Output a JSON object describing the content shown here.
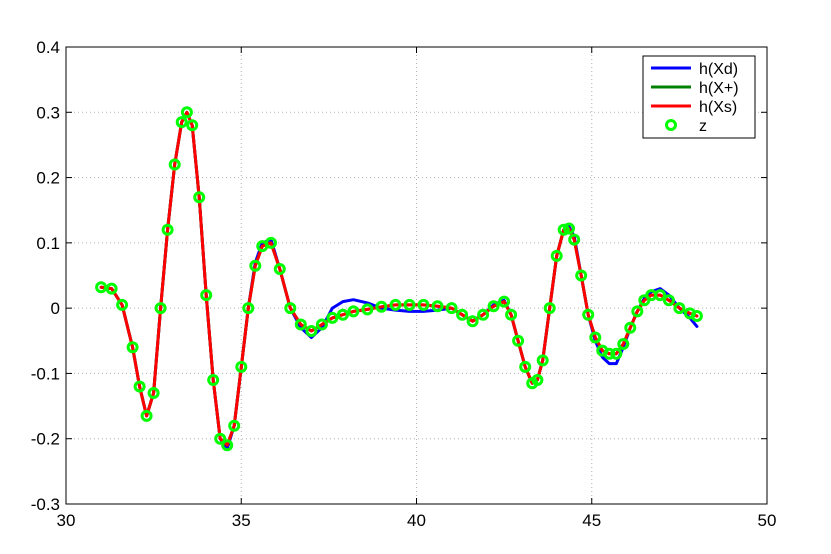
{
  "chart_data": {
    "type": "line",
    "title": "",
    "xlabel": "",
    "ylabel": "",
    "xlim": [
      30,
      50
    ],
    "ylim": [
      -0.3,
      0.4
    ],
    "x_ticks": [
      30,
      35,
      40,
      45,
      50
    ],
    "y_ticks": [
      -0.3,
      -0.2,
      -0.1,
      0,
      0.1,
      0.2,
      0.3,
      0.4
    ],
    "x_tick_labels": [
      "30",
      "35",
      "40",
      "45",
      "50"
    ],
    "y_tick_labels": [
      "-0.3",
      "-0.2",
      "-0.1",
      "0",
      "0.1",
      "0.2",
      "0.3",
      "0.4"
    ],
    "grid": true,
    "legend_position": "top-right",
    "series": [
      {
        "name": "h(Xd)",
        "style": "line",
        "color": "#0000ff",
        "x": [
          31.0,
          31.3,
          31.6,
          31.9,
          32.1,
          32.3,
          32.5,
          32.7,
          32.9,
          33.1,
          33.3,
          33.45,
          33.6,
          33.8,
          34.0,
          34.2,
          34.4,
          34.6,
          34.8,
          35.0,
          35.2,
          35.4,
          35.6,
          35.85,
          36.1,
          36.4,
          36.7,
          37.0,
          37.3,
          37.6,
          37.9,
          38.2,
          38.6,
          39.0,
          39.4,
          39.8,
          40.2,
          40.6,
          41.0,
          41.3,
          41.6,
          41.9,
          42.2,
          42.5,
          42.7,
          42.9,
          43.1,
          43.3,
          43.45,
          43.6,
          43.8,
          44.0,
          44.2,
          44.35,
          44.5,
          44.7,
          44.9,
          45.1,
          45.3,
          45.5,
          45.7,
          45.9,
          46.1,
          46.3,
          46.5,
          46.7,
          46.95,
          47.2,
          47.5,
          47.8,
          48.0
        ],
        "y": [
          0.032,
          0.03,
          0.005,
          -0.06,
          -0.12,
          -0.165,
          -0.13,
          0.0,
          0.12,
          0.22,
          0.285,
          0.3,
          0.28,
          0.17,
          0.02,
          -0.11,
          -0.2,
          -0.215,
          -0.18,
          -0.09,
          0.0,
          0.07,
          0.1,
          0.105,
          0.06,
          0.0,
          -0.03,
          -0.045,
          -0.03,
          -0.0,
          0.01,
          0.013,
          0.008,
          0.0,
          -0.003,
          -0.005,
          -0.005,
          -0.003,
          0.0,
          -0.01,
          -0.02,
          -0.01,
          0.005,
          0.012,
          -0.01,
          -0.05,
          -0.09,
          -0.115,
          -0.11,
          -0.08,
          0.0,
          0.08,
          0.12,
          0.125,
          0.11,
          0.05,
          -0.01,
          -0.05,
          -0.075,
          -0.085,
          -0.085,
          -0.06,
          -0.03,
          -0.005,
          0.015,
          0.025,
          0.03,
          0.02,
          0.0,
          -0.015,
          -0.028
        ]
      },
      {
        "name": "h(X+)",
        "style": "line",
        "color": "#008000",
        "x": [
          31.0,
          31.3,
          31.6,
          31.9,
          32.1,
          32.3,
          32.5,
          32.7,
          32.9,
          33.1,
          33.3,
          33.45,
          33.6,
          33.8,
          34.0,
          34.2,
          34.4,
          34.6,
          34.8,
          35.0,
          35.2,
          35.4,
          35.6,
          35.85,
          36.1,
          36.4,
          36.7,
          37.0,
          37.3,
          37.6,
          37.9,
          38.2,
          38.6,
          39.0,
          39.4,
          39.8,
          40.2,
          40.6,
          41.0,
          41.3,
          41.6,
          41.9,
          42.2,
          42.5,
          42.7,
          42.9,
          43.1,
          43.3,
          43.45,
          43.6,
          43.8,
          44.0,
          44.2,
          44.35,
          44.5,
          44.7,
          44.9,
          45.1,
          45.3,
          45.5,
          45.7,
          45.9,
          46.1,
          46.3,
          46.5,
          46.7,
          46.95,
          47.2,
          47.5,
          47.8,
          48.0
        ],
        "y": [
          0.032,
          0.03,
          0.005,
          -0.06,
          -0.12,
          -0.165,
          -0.13,
          0.0,
          0.12,
          0.22,
          0.285,
          0.3,
          0.28,
          0.17,
          0.02,
          -0.11,
          -0.2,
          -0.21,
          -0.18,
          -0.09,
          0.0,
          0.065,
          0.095,
          0.1,
          0.06,
          0.0,
          -0.025,
          -0.035,
          -0.025,
          -0.015,
          -0.01,
          -0.005,
          -0.002,
          0.002,
          0.005,
          0.005,
          0.005,
          0.003,
          0.0,
          -0.01,
          -0.02,
          -0.01,
          0.003,
          0.01,
          -0.01,
          -0.05,
          -0.09,
          -0.115,
          -0.11,
          -0.08,
          0.0,
          0.08,
          0.12,
          0.122,
          0.105,
          0.05,
          -0.01,
          -0.045,
          -0.065,
          -0.07,
          -0.07,
          -0.055,
          -0.03,
          -0.005,
          0.012,
          0.02,
          0.02,
          0.012,
          0.0,
          -0.008,
          -0.012
        ]
      },
      {
        "name": "h(Xs)",
        "style": "line",
        "color": "#ff0000",
        "x": [
          31.0,
          31.3,
          31.6,
          31.9,
          32.1,
          32.3,
          32.5,
          32.7,
          32.9,
          33.1,
          33.3,
          33.45,
          33.6,
          33.8,
          34.0,
          34.2,
          34.4,
          34.6,
          34.8,
          35.0,
          35.2,
          35.4,
          35.6,
          35.85,
          36.1,
          36.4,
          36.7,
          37.0,
          37.3,
          37.6,
          37.9,
          38.2,
          38.6,
          39.0,
          39.4,
          39.8,
          40.2,
          40.6,
          41.0,
          41.3,
          41.6,
          41.9,
          42.2,
          42.5,
          42.7,
          42.9,
          43.1,
          43.3,
          43.45,
          43.6,
          43.8,
          44.0,
          44.2,
          44.35,
          44.5,
          44.7,
          44.9,
          45.1,
          45.3,
          45.5,
          45.7,
          45.9,
          46.1,
          46.3,
          46.5,
          46.7,
          46.95,
          47.2,
          47.5,
          47.8,
          48.0
        ],
        "y": [
          0.032,
          0.03,
          0.005,
          -0.06,
          -0.12,
          -0.165,
          -0.13,
          0.0,
          0.12,
          0.22,
          0.285,
          0.3,
          0.28,
          0.17,
          0.02,
          -0.11,
          -0.2,
          -0.21,
          -0.18,
          -0.09,
          0.0,
          0.065,
          0.095,
          0.1,
          0.06,
          0.0,
          -0.025,
          -0.035,
          -0.025,
          -0.015,
          -0.01,
          -0.005,
          -0.002,
          0.002,
          0.005,
          0.005,
          0.005,
          0.003,
          0.0,
          -0.01,
          -0.02,
          -0.01,
          0.003,
          0.01,
          -0.01,
          -0.05,
          -0.09,
          -0.115,
          -0.11,
          -0.08,
          0.0,
          0.08,
          0.12,
          0.122,
          0.105,
          0.05,
          -0.01,
          -0.045,
          -0.065,
          -0.07,
          -0.07,
          -0.055,
          -0.03,
          -0.005,
          0.012,
          0.02,
          0.02,
          0.012,
          0.0,
          -0.008,
          -0.012
        ]
      },
      {
        "name": "z",
        "style": "markers",
        "marker": "circle",
        "color": "#00ff00",
        "x": [
          31.0,
          31.3,
          31.6,
          31.9,
          32.1,
          32.3,
          32.5,
          32.7,
          32.9,
          33.1,
          33.3,
          33.45,
          33.6,
          33.8,
          34.0,
          34.2,
          34.4,
          34.6,
          34.8,
          35.0,
          35.2,
          35.4,
          35.6,
          35.85,
          36.1,
          36.4,
          36.7,
          37.0,
          37.3,
          37.6,
          37.9,
          38.2,
          38.6,
          39.0,
          39.4,
          39.8,
          40.2,
          40.6,
          41.0,
          41.3,
          41.6,
          41.9,
          42.2,
          42.5,
          42.7,
          42.9,
          43.1,
          43.3,
          43.45,
          43.6,
          43.8,
          44.0,
          44.2,
          44.35,
          44.5,
          44.7,
          44.9,
          45.1,
          45.3,
          45.5,
          45.7,
          45.9,
          46.1,
          46.3,
          46.5,
          46.7,
          46.95,
          47.2,
          47.5,
          47.8,
          48.0
        ],
        "y": [
          0.032,
          0.03,
          0.005,
          -0.06,
          -0.12,
          -0.165,
          -0.13,
          0.0,
          0.12,
          0.22,
          0.285,
          0.3,
          0.28,
          0.17,
          0.02,
          -0.11,
          -0.2,
          -0.21,
          -0.18,
          -0.09,
          0.0,
          0.065,
          0.095,
          0.1,
          0.06,
          0.0,
          -0.025,
          -0.035,
          -0.025,
          -0.015,
          -0.01,
          -0.005,
          -0.002,
          0.002,
          0.005,
          0.005,
          0.005,
          0.003,
          0.0,
          -0.01,
          -0.02,
          -0.01,
          0.003,
          0.01,
          -0.01,
          -0.05,
          -0.09,
          -0.115,
          -0.11,
          -0.08,
          0.0,
          0.08,
          0.12,
          0.122,
          0.105,
          0.05,
          -0.01,
          -0.045,
          -0.065,
          -0.07,
          -0.07,
          -0.055,
          -0.03,
          -0.005,
          0.012,
          0.02,
          0.02,
          0.012,
          0.0,
          -0.008,
          -0.012
        ]
      }
    ]
  }
}
